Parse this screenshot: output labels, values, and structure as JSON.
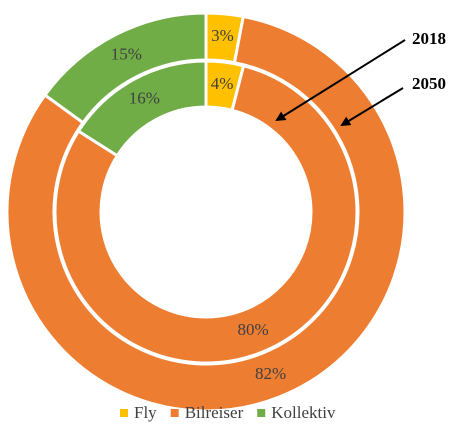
{
  "chart_data": {
    "type": "donut",
    "categories": [
      "Fly",
      "Bilreiser",
      "Kollektiv"
    ],
    "colors": [
      "#FFC000",
      "#ED7D31",
      "#70AD47"
    ],
    "series": [
      {
        "name": "2018",
        "values": [
          4,
          80,
          16
        ],
        "value_labels": [
          "4%",
          "80%",
          "16%"
        ]
      },
      {
        "name": "2050",
        "values": [
          3,
          82,
          15
        ],
        "value_labels": [
          "3%",
          "82%",
          "15%"
        ]
      }
    ]
  }
}
